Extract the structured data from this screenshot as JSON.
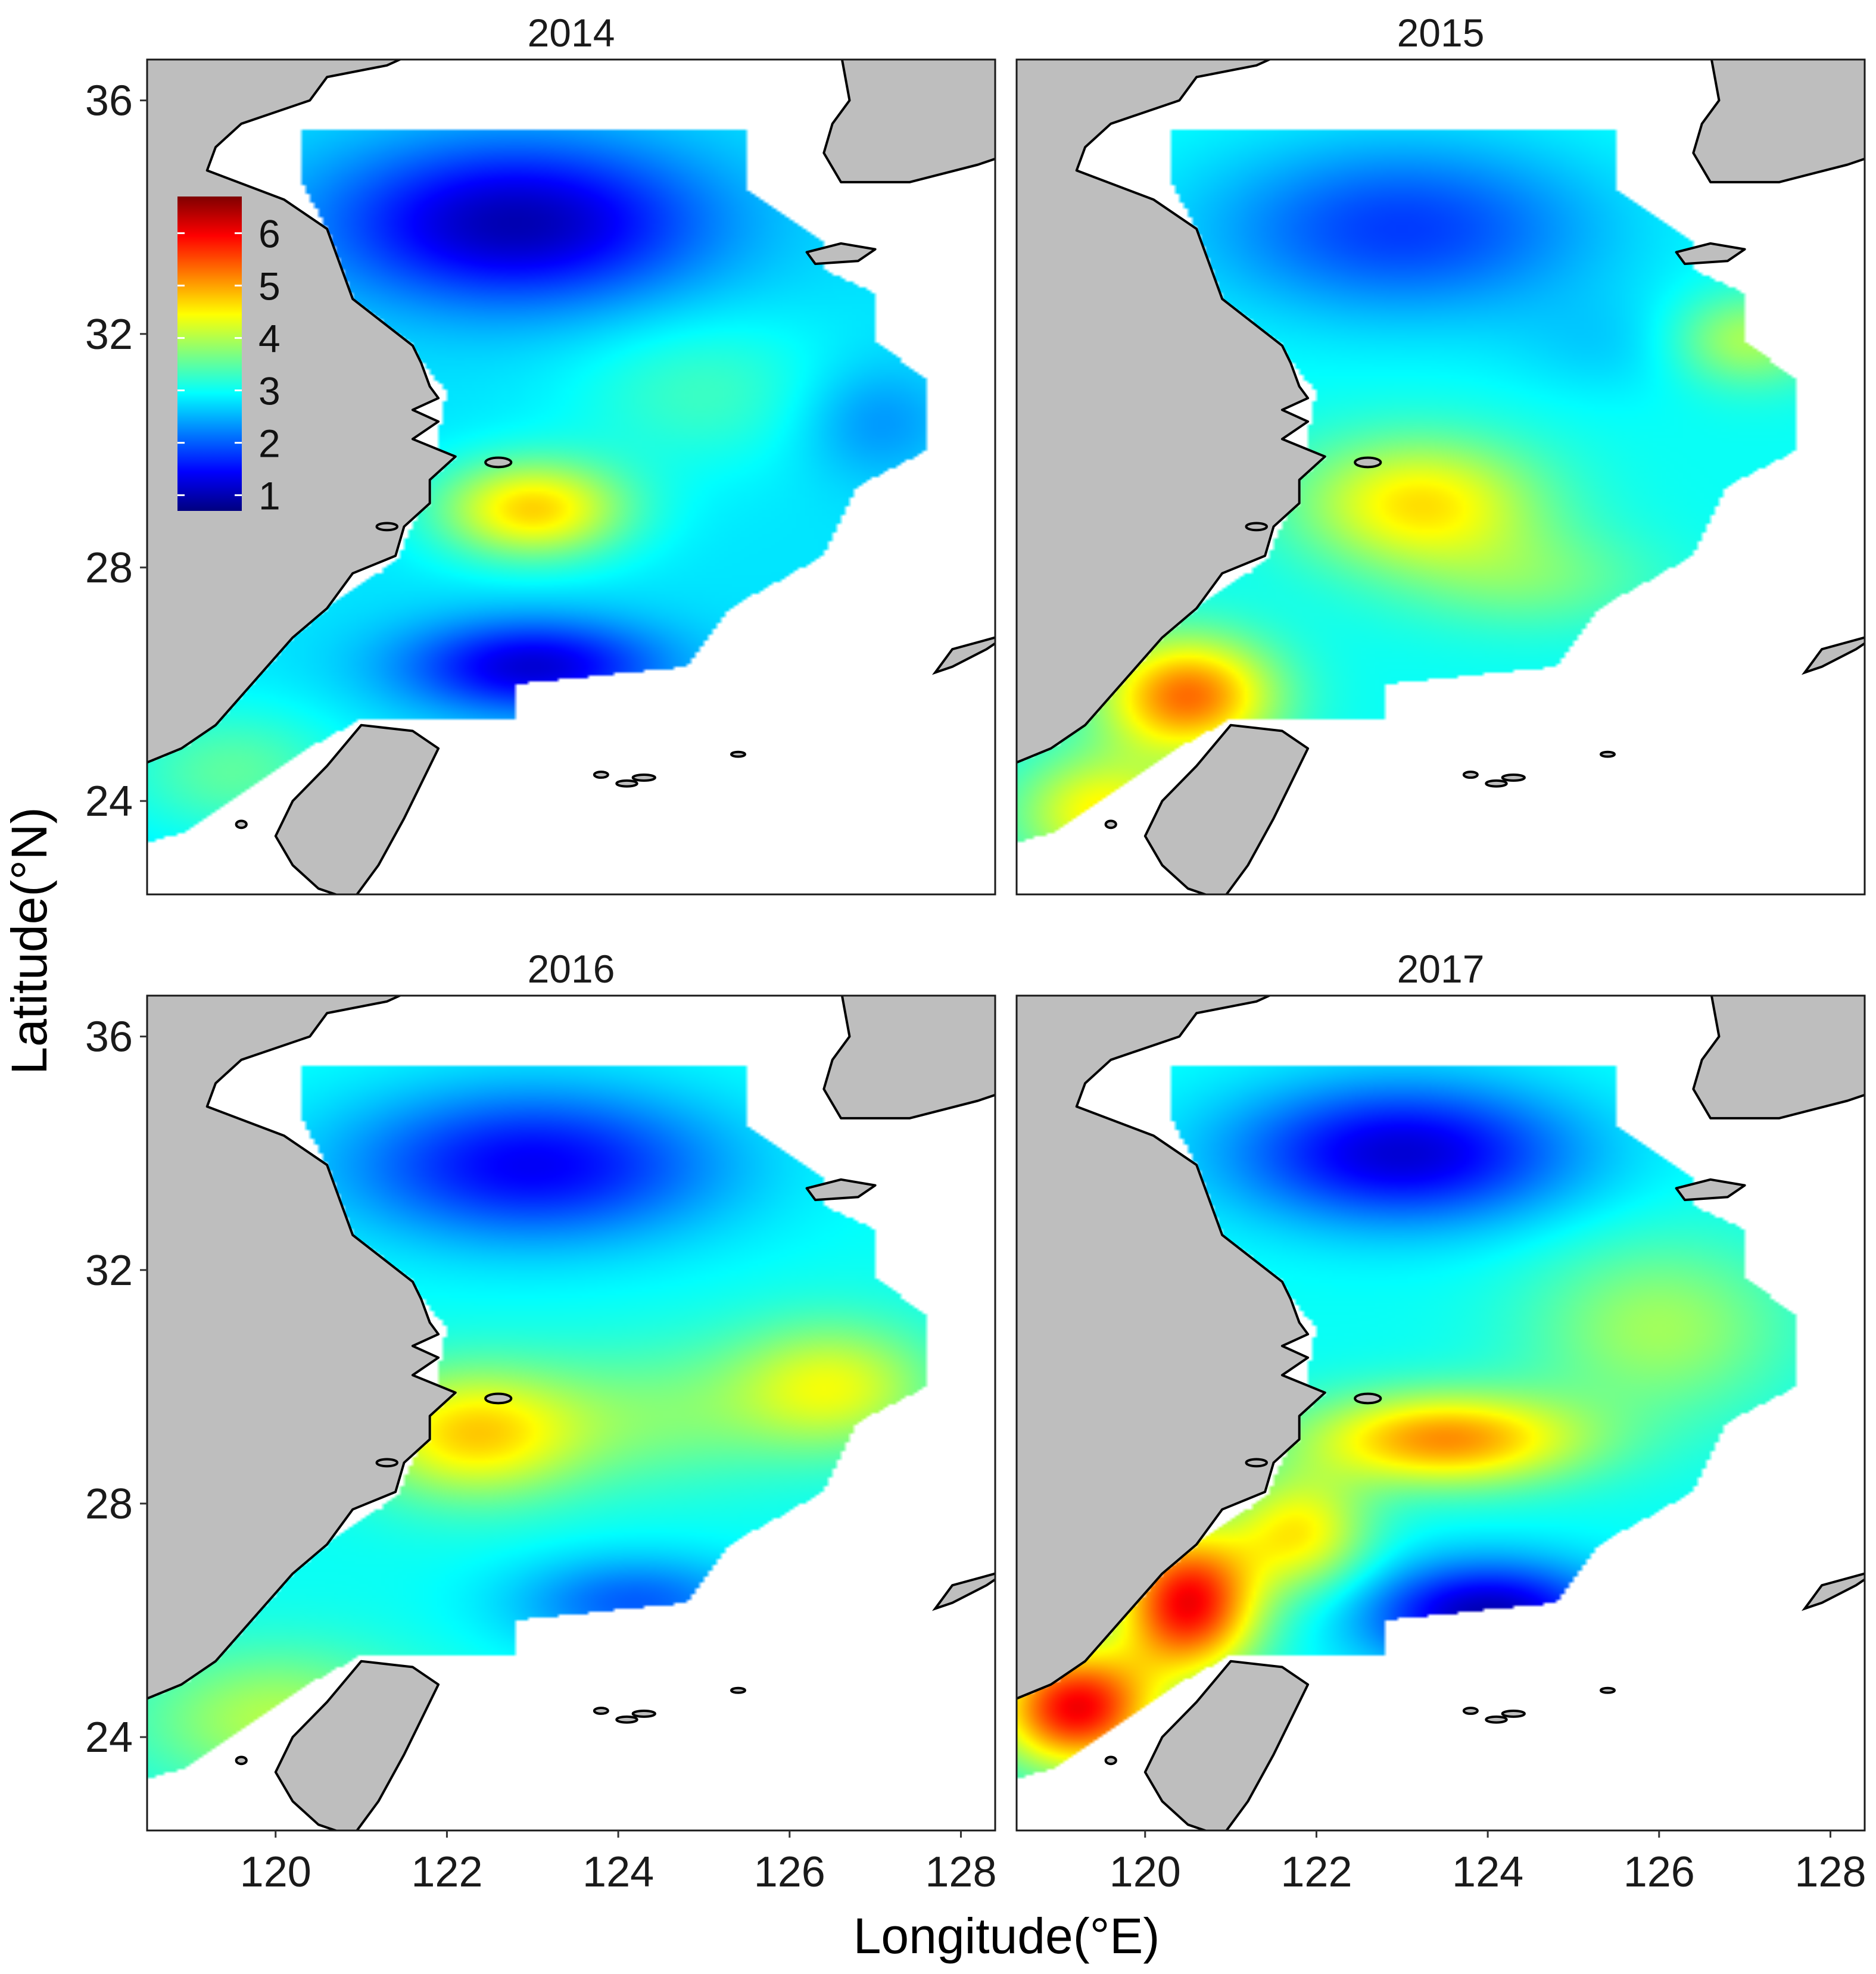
{
  "figure": {
    "xlabel": "Longitude(°E)",
    "ylabel": "Latitude(°N)",
    "x_ticks": [
      120,
      122,
      124,
      126,
      128
    ],
    "y_ticks": [
      24,
      28,
      32,
      36
    ],
    "xlim": [
      118.5,
      128.4
    ],
    "ylim": [
      22.4,
      36.7
    ]
  },
  "legend": {
    "ticks": [
      1,
      2,
      3,
      4,
      5,
      6
    ],
    "range": [
      0.7,
      6.7
    ],
    "position": "inside top-left of first panel",
    "colors": [
      "#00007f",
      "#0000ff",
      "#007fff",
      "#00ffff",
      "#7fff7f",
      "#ffff00",
      "#ff7f00",
      "#ff0000",
      "#7f0000"
    ]
  },
  "colors": {
    "land": "#bebebe",
    "coastline": "#000000",
    "frame": "#1a1a1a",
    "background": "#ffffff"
  },
  "panels": [
    {
      "title": "2014",
      "base": 2.8,
      "blobs": [
        [
          123.0,
          29.0,
          1.1,
          0.85,
          1.9
        ],
        [
          122.8,
          33.9,
          2.2,
          1.4,
          -1.8
        ],
        [
          123.0,
          26.3,
          1.5,
          0.8,
          -1.6
        ],
        [
          125.0,
          31.0,
          1.5,
          1.3,
          0.5
        ],
        [
          119.5,
          24.5,
          1.3,
          1.1,
          0.7
        ],
        [
          127.0,
          30.5,
          0.9,
          1.0,
          -0.5
        ]
      ]
    },
    {
      "title": "2015",
      "base": 3.0,
      "blobs": [
        [
          123.2,
          29.1,
          1.4,
          1.1,
          1.6
        ],
        [
          120.5,
          25.8,
          1.0,
          1.0,
          2.3
        ],
        [
          123.0,
          33.8,
          2.3,
          1.5,
          -1.2
        ],
        [
          125.5,
          31.8,
          1.2,
          0.9,
          -0.3
        ],
        [
          127.0,
          31.9,
          0.9,
          0.8,
          1.0
        ],
        [
          124.5,
          27.8,
          1.5,
          0.9,
          0.6
        ],
        [
          119.5,
          23.8,
          1.0,
          1.0,
          1.5
        ]
      ]
    },
    {
      "title": "2016",
      "base": 3.0,
      "blobs": [
        [
          123.0,
          33.8,
          2.2,
          1.3,
          -1.6
        ],
        [
          122.3,
          29.2,
          1.3,
          1.1,
          1.7
        ],
        [
          126.5,
          30.0,
          1.2,
          1.1,
          1.3
        ],
        [
          124.2,
          26.3,
          1.4,
          0.8,
          -1.0
        ],
        [
          120.0,
          24.3,
          1.6,
          1.2,
          1.0
        ],
        [
          124.5,
          29.5,
          1.5,
          1.2,
          0.6
        ]
      ]
    },
    {
      "title": "2017",
      "base": 3.0,
      "blobs": [
        [
          123.5,
          29.1,
          1.6,
          0.8,
          2.1
        ],
        [
          120.5,
          26.3,
          0.8,
          1.2,
          3.0
        ],
        [
          119.2,
          24.5,
          0.9,
          1.0,
          3.0
        ],
        [
          123.0,
          34.0,
          2.0,
          1.2,
          -1.8
        ],
        [
          124.0,
          26.1,
          1.4,
          0.9,
          -2.0
        ],
        [
          126.0,
          31.0,
          1.5,
          1.5,
          0.9
        ],
        [
          121.8,
          27.5,
          0.8,
          1.0,
          1.5
        ]
      ]
    }
  ]
}
